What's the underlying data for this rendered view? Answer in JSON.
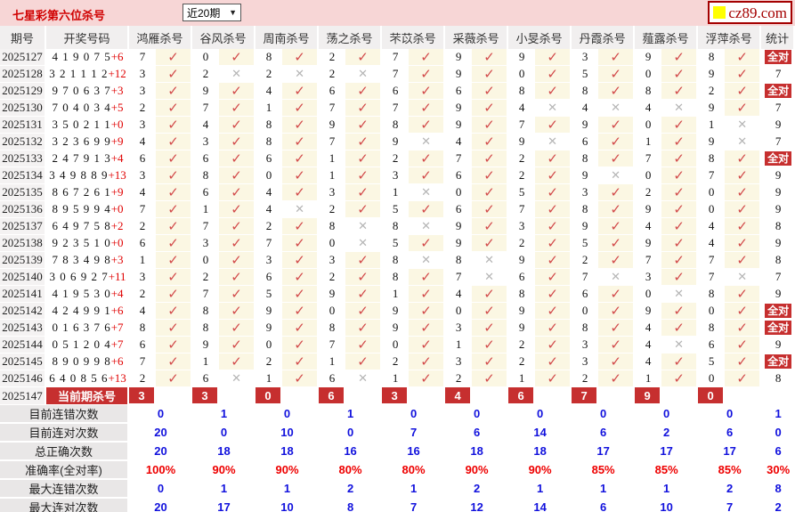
{
  "header": {
    "title": "七星彩第六位杀号",
    "period_range": "近20期",
    "logo_text": "cz89.com"
  },
  "colors": {
    "topbar_pink": "#f7d6d6",
    "accent_red": "#c62f2f",
    "check_red": "#d24a4a",
    "cross_gray": "#b5b5b5",
    "summary_blue": "#1111dd",
    "percent_red": "#ee0000",
    "cream_cell": "#fbf7e3",
    "logo_yellow": "#ffff00"
  },
  "table": {
    "columns": [
      "期号",
      "开奖号码",
      "鸿雁杀号",
      "谷风杀号",
      "周南杀号",
      "荡之杀号",
      "芣苡杀号",
      "采薇杀号",
      "小旻杀号",
      "丹霞杀号",
      "薤露杀号",
      "浮萍杀号",
      "统计"
    ],
    "marks": {
      "correct": "✓",
      "wrong": "✕"
    },
    "all_correct_label": "全对",
    "rows": [
      {
        "period": "2025127",
        "draw": "4 1 9 0 7 5",
        "bonus": "+6",
        "kills": [
          [
            7,
            1
          ],
          [
            0,
            1
          ],
          [
            8,
            1
          ],
          [
            2,
            1
          ],
          [
            7,
            1
          ],
          [
            9,
            1
          ],
          [
            9,
            1
          ],
          [
            3,
            1
          ],
          [
            9,
            1
          ],
          [
            8,
            1
          ]
        ],
        "stat": "全对"
      },
      {
        "period": "2025128",
        "draw": "3 2 1 1 1 2",
        "bonus": "+12",
        "kills": [
          [
            3,
            1
          ],
          [
            2,
            0
          ],
          [
            2,
            0
          ],
          [
            2,
            0
          ],
          [
            7,
            1
          ],
          [
            9,
            1
          ],
          [
            0,
            1
          ],
          [
            5,
            1
          ],
          [
            0,
            1
          ],
          [
            9,
            1
          ]
        ],
        "stat": "7"
      },
      {
        "period": "2025129",
        "draw": "9 7 0 6 3 7",
        "bonus": "+3",
        "kills": [
          [
            3,
            1
          ],
          [
            9,
            1
          ],
          [
            4,
            1
          ],
          [
            6,
            1
          ],
          [
            6,
            1
          ],
          [
            6,
            1
          ],
          [
            8,
            1
          ],
          [
            8,
            1
          ],
          [
            8,
            1
          ],
          [
            2,
            1
          ]
        ],
        "stat": "全对"
      },
      {
        "period": "2025130",
        "draw": "7 0 4 0 3 4",
        "bonus": "+5",
        "kills": [
          [
            2,
            1
          ],
          [
            7,
            1
          ],
          [
            1,
            1
          ],
          [
            7,
            1
          ],
          [
            7,
            1
          ],
          [
            9,
            1
          ],
          [
            4,
            0
          ],
          [
            4,
            0
          ],
          [
            4,
            0
          ],
          [
            9,
            1
          ]
        ],
        "stat": "7"
      },
      {
        "period": "2025131",
        "draw": "3 5 0 2 1 1",
        "bonus": "+0",
        "kills": [
          [
            3,
            1
          ],
          [
            4,
            1
          ],
          [
            8,
            1
          ],
          [
            9,
            1
          ],
          [
            8,
            1
          ],
          [
            9,
            1
          ],
          [
            7,
            1
          ],
          [
            9,
            1
          ],
          [
            0,
            1
          ],
          [
            1,
            0
          ]
        ],
        "stat": "9"
      },
      {
        "period": "2025132",
        "draw": "3 2 3 6 9 9",
        "bonus": "+9",
        "kills": [
          [
            4,
            1
          ],
          [
            3,
            1
          ],
          [
            8,
            1
          ],
          [
            7,
            1
          ],
          [
            9,
            0
          ],
          [
            4,
            1
          ],
          [
            9,
            0
          ],
          [
            6,
            1
          ],
          [
            1,
            1
          ],
          [
            9,
            0
          ]
        ],
        "stat": "7"
      },
      {
        "period": "2025133",
        "draw": "2 4 7 9 1 3",
        "bonus": "+4",
        "kills": [
          [
            6,
            1
          ],
          [
            6,
            1
          ],
          [
            6,
            1
          ],
          [
            1,
            1
          ],
          [
            2,
            1
          ],
          [
            7,
            1
          ],
          [
            2,
            1
          ],
          [
            8,
            1
          ],
          [
            7,
            1
          ],
          [
            8,
            1
          ]
        ],
        "stat": "全对"
      },
      {
        "period": "2025134",
        "draw": "3 4 9 8 8 9",
        "bonus": "+13",
        "kills": [
          [
            3,
            1
          ],
          [
            8,
            1
          ],
          [
            0,
            1
          ],
          [
            1,
            1
          ],
          [
            3,
            1
          ],
          [
            6,
            1
          ],
          [
            2,
            1
          ],
          [
            9,
            0
          ],
          [
            0,
            1
          ],
          [
            7,
            1
          ]
        ],
        "stat": "9"
      },
      {
        "period": "2025135",
        "draw": "8 6 7 2 6 1",
        "bonus": "+9",
        "kills": [
          [
            4,
            1
          ],
          [
            6,
            1
          ],
          [
            4,
            1
          ],
          [
            3,
            1
          ],
          [
            1,
            0
          ],
          [
            0,
            1
          ],
          [
            5,
            1
          ],
          [
            3,
            1
          ],
          [
            2,
            1
          ],
          [
            0,
            1
          ]
        ],
        "stat": "9"
      },
      {
        "period": "2025136",
        "draw": "8 9 5 9 9 4",
        "bonus": "+0",
        "kills": [
          [
            7,
            1
          ],
          [
            1,
            1
          ],
          [
            4,
            0
          ],
          [
            2,
            1
          ],
          [
            5,
            1
          ],
          [
            6,
            1
          ],
          [
            7,
            1
          ],
          [
            8,
            1
          ],
          [
            9,
            1
          ],
          [
            0,
            1
          ]
        ],
        "stat": "9"
      },
      {
        "period": "2025137",
        "draw": "6 4 9 7 5 8",
        "bonus": "+2",
        "kills": [
          [
            2,
            1
          ],
          [
            7,
            1
          ],
          [
            2,
            1
          ],
          [
            8,
            0
          ],
          [
            8,
            0
          ],
          [
            9,
            1
          ],
          [
            3,
            1
          ],
          [
            9,
            1
          ],
          [
            4,
            1
          ],
          [
            4,
            1
          ]
        ],
        "stat": "8"
      },
      {
        "period": "2025138",
        "draw": "9 2 3 5 1 0",
        "bonus": "+0",
        "kills": [
          [
            6,
            1
          ],
          [
            3,
            1
          ],
          [
            7,
            1
          ],
          [
            0,
            0
          ],
          [
            5,
            1
          ],
          [
            9,
            1
          ],
          [
            2,
            1
          ],
          [
            5,
            1
          ],
          [
            9,
            1
          ],
          [
            4,
            1
          ]
        ],
        "stat": "9"
      },
      {
        "period": "2025139",
        "draw": "7 8 3 4 9 8",
        "bonus": "+3",
        "kills": [
          [
            1,
            1
          ],
          [
            0,
            1
          ],
          [
            3,
            1
          ],
          [
            3,
            1
          ],
          [
            8,
            0
          ],
          [
            8,
            0
          ],
          [
            9,
            1
          ],
          [
            2,
            1
          ],
          [
            7,
            1
          ],
          [
            7,
            1
          ]
        ],
        "stat": "8"
      },
      {
        "period": "2025140",
        "draw": "3 0 6 9 2 7",
        "bonus": "+11",
        "kills": [
          [
            3,
            1
          ],
          [
            2,
            1
          ],
          [
            6,
            1
          ],
          [
            2,
            1
          ],
          [
            8,
            1
          ],
          [
            7,
            0
          ],
          [
            6,
            1
          ],
          [
            7,
            0
          ],
          [
            3,
            1
          ],
          [
            7,
            0
          ]
        ],
        "stat": "7"
      },
      {
        "period": "2025141",
        "draw": "4 1 9 5 3 0",
        "bonus": "+4",
        "kills": [
          [
            2,
            1
          ],
          [
            7,
            1
          ],
          [
            5,
            1
          ],
          [
            9,
            1
          ],
          [
            1,
            1
          ],
          [
            4,
            1
          ],
          [
            8,
            1
          ],
          [
            6,
            1
          ],
          [
            0,
            0
          ],
          [
            8,
            1
          ]
        ],
        "stat": "9"
      },
      {
        "period": "2025142",
        "draw": "4 2 4 9 9 1",
        "bonus": "+6",
        "kills": [
          [
            4,
            1
          ],
          [
            8,
            1
          ],
          [
            9,
            1
          ],
          [
            0,
            1
          ],
          [
            9,
            1
          ],
          [
            0,
            1
          ],
          [
            9,
            1
          ],
          [
            0,
            1
          ],
          [
            9,
            1
          ],
          [
            0,
            1
          ]
        ],
        "stat": "全对"
      },
      {
        "period": "2025143",
        "draw": "0 1 6 3 7 6",
        "bonus": "+7",
        "kills": [
          [
            8,
            1
          ],
          [
            8,
            1
          ],
          [
            9,
            1
          ],
          [
            8,
            1
          ],
          [
            9,
            1
          ],
          [
            3,
            1
          ],
          [
            9,
            1
          ],
          [
            8,
            1
          ],
          [
            4,
            1
          ],
          [
            8,
            1
          ]
        ],
        "stat": "全对"
      },
      {
        "period": "2025144",
        "draw": "0 5 1 2 0 4",
        "bonus": "+7",
        "kills": [
          [
            6,
            1
          ],
          [
            9,
            1
          ],
          [
            0,
            1
          ],
          [
            7,
            1
          ],
          [
            0,
            1
          ],
          [
            1,
            1
          ],
          [
            2,
            1
          ],
          [
            3,
            1
          ],
          [
            4,
            0
          ],
          [
            6,
            1
          ]
        ],
        "stat": "9"
      },
      {
        "period": "2025145",
        "draw": "8 9 0 9 9 8",
        "bonus": "+6",
        "kills": [
          [
            7,
            1
          ],
          [
            1,
            1
          ],
          [
            2,
            1
          ],
          [
            1,
            1
          ],
          [
            2,
            1
          ],
          [
            3,
            1
          ],
          [
            2,
            1
          ],
          [
            3,
            1
          ],
          [
            4,
            1
          ],
          [
            5,
            1
          ]
        ],
        "stat": "全对"
      },
      {
        "period": "2025146",
        "draw": "6 4 0 8 5 6",
        "bonus": "+13",
        "kills": [
          [
            2,
            1
          ],
          [
            6,
            0
          ],
          [
            1,
            1
          ],
          [
            6,
            0
          ],
          [
            1,
            1
          ],
          [
            2,
            1
          ],
          [
            1,
            1
          ],
          [
            2,
            1
          ],
          [
            1,
            1
          ],
          [
            0,
            1
          ]
        ],
        "stat": "8"
      }
    ],
    "current_row": {
      "period": "2025147",
      "label": "当前期杀号",
      "kills": [
        3,
        3,
        0,
        6,
        3,
        4,
        6,
        7,
        9,
        0
      ]
    },
    "summary_rows": [
      {
        "label": "目前连错次数",
        "values": [
          "0",
          "1",
          "0",
          "1",
          "0",
          "0",
          "0",
          "0",
          "0",
          "0"
        ],
        "stat": "1",
        "style": "blue"
      },
      {
        "label": "目前连对次数",
        "values": [
          "20",
          "0",
          "10",
          "0",
          "7",
          "6",
          "14",
          "6",
          "2",
          "6"
        ],
        "stat": "0",
        "style": "blue"
      },
      {
        "label": "总正确次数",
        "values": [
          "20",
          "18",
          "18",
          "16",
          "16",
          "18",
          "18",
          "17",
          "17",
          "17"
        ],
        "stat": "6",
        "style": "blue"
      },
      {
        "label": "准确率(全对率)",
        "values": [
          "100%",
          "90%",
          "90%",
          "80%",
          "80%",
          "90%",
          "90%",
          "85%",
          "85%",
          "85%"
        ],
        "stat": "30%",
        "style": "red"
      },
      {
        "label": "最大连错次数",
        "values": [
          "0",
          "1",
          "1",
          "2",
          "1",
          "2",
          "1",
          "1",
          "1",
          "2"
        ],
        "stat": "8",
        "style": "blue"
      },
      {
        "label": "最大连对次数",
        "values": [
          "20",
          "17",
          "10",
          "8",
          "7",
          "12",
          "14",
          "6",
          "10",
          "7"
        ],
        "stat": "2",
        "style": "blue"
      }
    ]
  }
}
